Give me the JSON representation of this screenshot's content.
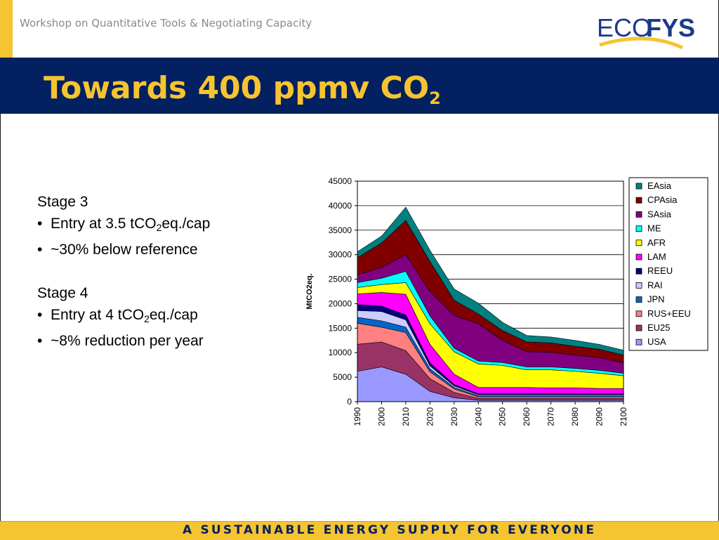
{
  "header": {
    "text": "Workshop on Quantitative Tools & Negotiating Capacity"
  },
  "logo": {
    "part1": "ECO",
    "part2": "FYS",
    "colors": {
      "blue": "#1a3a8c",
      "yellow": "#f5c431"
    }
  },
  "title": {
    "main": "Towards 400 ppmv CO",
    "sub": "2"
  },
  "bullets": {
    "stage3": {
      "heading": "Stage 3",
      "b1_pre": "Entry at 3.5 tCO",
      "b1_sub": "2",
      "b1_post": "eq./cap",
      "b2": "~30% below reference"
    },
    "stage4": {
      "heading": "Stage 4",
      "b1_pre": "Entry at 4 tCO",
      "b1_sub": "2",
      "b1_post": "eq./cap",
      "b2": "~8% reduction per year"
    },
    "marker": "•"
  },
  "footer": {
    "text": "A SUSTAINABLE ENERGY SUPPLY FOR EVERYONE"
  },
  "colors": {
    "navy": "#032060",
    "yellow": "#f5c431"
  },
  "chart_data": {
    "type": "area",
    "stacked": true,
    "ylabel": "MtCO2eq.",
    "xlabel": "",
    "ylim": [
      0,
      45000
    ],
    "yticks": [
      0,
      5000,
      10000,
      15000,
      20000,
      25000,
      30000,
      35000,
      40000,
      45000
    ],
    "categories": [
      "1990",
      "2000",
      "2010",
      "2020",
      "2030",
      "2040",
      "2050",
      "2060",
      "2070",
      "2080",
      "2090",
      "2100"
    ],
    "legend_position": "right",
    "grid": "horizontal",
    "series": [
      {
        "name": "USA",
        "color": "#9999ff",
        "values": [
          6200,
          7100,
          5600,
          2100,
          800,
          300,
          300,
          300,
          300,
          300,
          300,
          300
        ]
      },
      {
        "name": "EU25",
        "color": "#993366",
        "values": [
          5500,
          5100,
          4800,
          2600,
          1100,
          400,
          400,
          400,
          400,
          400,
          400,
          400
        ]
      },
      {
        "name": "RUS+EEU",
        "color": "#ff8080",
        "values": [
          4300,
          3000,
          3700,
          1400,
          700,
          300,
          300,
          300,
          300,
          300,
          300,
          300
        ]
      },
      {
        "name": "JPN",
        "color": "#0066cc",
        "values": [
          1200,
          1300,
          1100,
          600,
          300,
          200,
          200,
          200,
          200,
          200,
          200,
          200
        ]
      },
      {
        "name": "RAI",
        "color": "#ccccff",
        "values": [
          1400,
          1900,
          1500,
          600,
          300,
          200,
          200,
          200,
          200,
          200,
          200,
          200
        ]
      },
      {
        "name": "REEU",
        "color": "#000080",
        "values": [
          1200,
          1100,
          1000,
          600,
          300,
          200,
          200,
          200,
          200,
          200,
          200,
          200
        ]
      },
      {
        "name": "LAM",
        "color": "#ff00ff",
        "values": [
          2200,
          2800,
          4200,
          3800,
          2100,
          1300,
          1300,
          1300,
          1200,
          1200,
          1100,
          1100
        ]
      },
      {
        "name": "AFR",
        "color": "#ffff00",
        "values": [
          1300,
          1600,
          2400,
          4200,
          4600,
          4800,
          4500,
          3600,
          3700,
          3400,
          3100,
          2600
        ]
      },
      {
        "name": "ME",
        "color": "#00ffff",
        "values": [
          1000,
          1300,
          2300,
          1600,
          700,
          600,
          600,
          600,
          600,
          600,
          600,
          500
        ]
      },
      {
        "name": "SAsia",
        "color": "#800080",
        "values": [
          1600,
          2200,
          3400,
          5000,
          6700,
          7600,
          4500,
          3100,
          3000,
          2700,
          2600,
          2100
        ]
      },
      {
        "name": "CPAsia",
        "color": "#800000",
        "values": [
          3500,
          5000,
          7000,
          6100,
          3100,
          2000,
          2000,
          2000,
          1900,
          1800,
          1700,
          1600
        ]
      },
      {
        "name": "EAsia",
        "color": "#008080",
        "values": [
          1200,
          1400,
          2700,
          2300,
          2300,
          2200,
          1700,
          1300,
          1200,
          1200,
          1000,
          1000
        ]
      }
    ]
  }
}
